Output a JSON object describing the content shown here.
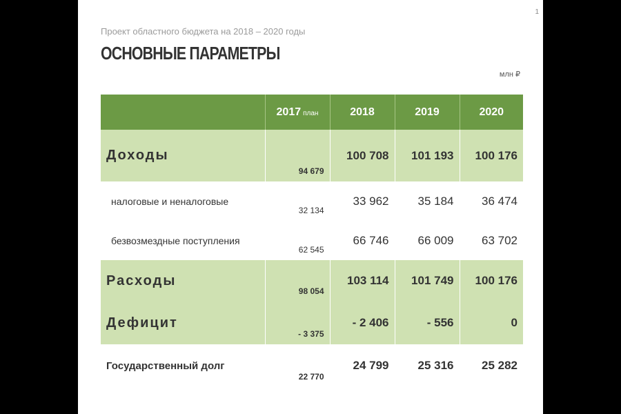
{
  "slide": {
    "page_number": "1",
    "subtitle": "Проект областного бюджета на 2018 – 2020 годы",
    "title": "ОСНОВНЫЕ ПАРАМЕТРЫ",
    "unit": "млн ₽"
  },
  "table": {
    "headers": [
      {
        "year": "2017",
        "note": "план"
      },
      {
        "year": "2018"
      },
      {
        "year": "2019"
      },
      {
        "year": "2020"
      }
    ],
    "rows": [
      {
        "label": "Доходы",
        "values": [
          "94 679",
          "100 708",
          "101 193",
          "100 176"
        ]
      },
      {
        "label": "налоговые и неналоговые",
        "values": [
          "32 134",
          "33 962",
          "35 184",
          "36 474"
        ]
      },
      {
        "label": "безвозмездные поступления",
        "values": [
          "62 545",
          "66 746",
          "66 009",
          "63 702"
        ]
      },
      {
        "label": "Расходы",
        "values": [
          "98 054",
          "103 114",
          "101 749",
          "100 176"
        ]
      },
      {
        "label": "Дефицит",
        "values": [
          "- 3 375",
          "- 2 406",
          "- 556",
          "0"
        ]
      },
      {
        "label": "Государственный долг",
        "values": [
          "22 770",
          "24 799",
          "25 316",
          "25 282"
        ]
      }
    ]
  },
  "colors": {
    "header_green": "#6c9a45",
    "row_light_green": "#cfe1b2",
    "frame": "#000000"
  }
}
